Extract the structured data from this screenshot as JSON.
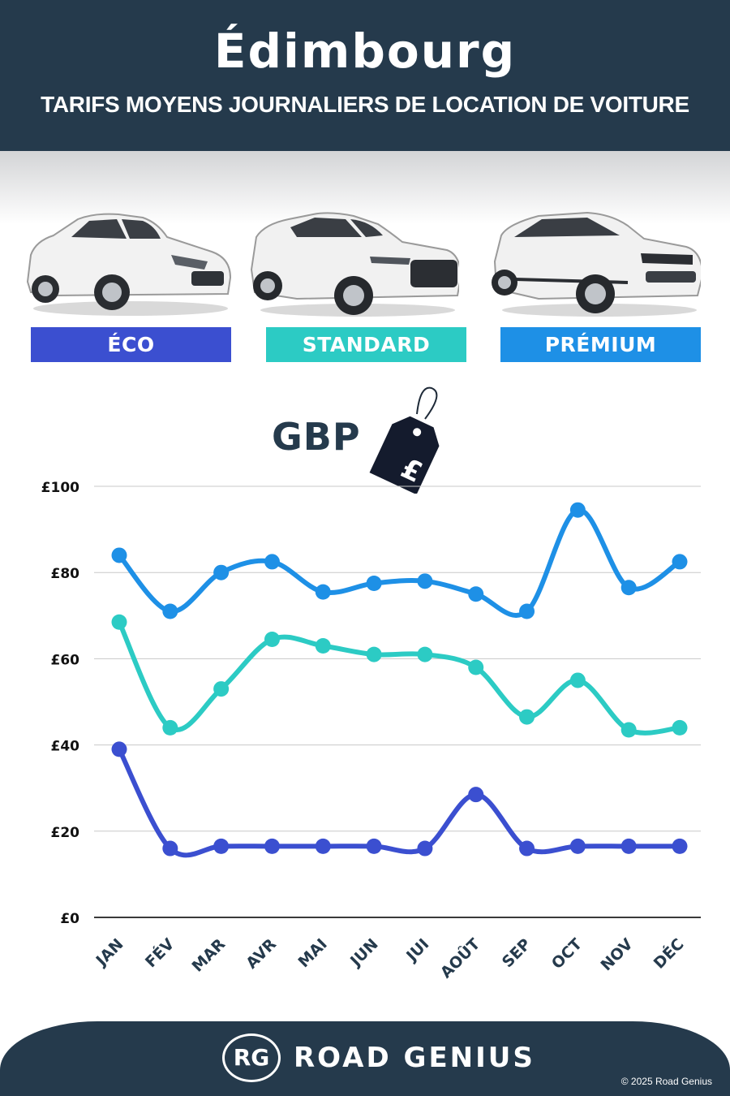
{
  "header": {
    "title": "Édimbourg",
    "subtitle": "TARIFS MOYENS JOURNALIERS DE LOCATION DE VOITURE"
  },
  "categories": [
    {
      "label": "ÉCO",
      "color": "#3b4fd0",
      "icon": "hatchback-car-icon"
    },
    {
      "label": "STANDARD",
      "color": "#2ccbc4",
      "icon": "suv-car-icon"
    },
    {
      "label": "PRÉMIUM",
      "color": "#1e90e6",
      "icon": "premium-suv-car-icon"
    }
  ],
  "currency": {
    "label": "GBP",
    "icon": "price-tag-icon",
    "symbol": "£"
  },
  "chart_data": {
    "type": "line",
    "categories": [
      "JAN",
      "FÉV",
      "MAR",
      "AVR",
      "MAI",
      "JUN",
      "JUI",
      "AOÛT",
      "SEP",
      "OCT",
      "NOV",
      "DÉC"
    ],
    "series": [
      {
        "name": "PRÉMIUM",
        "color": "#1e90e6",
        "values": [
          84,
          71,
          80,
          82.5,
          75.5,
          77.5,
          78,
          75,
          71,
          94.5,
          76.5,
          82.5
        ]
      },
      {
        "name": "STANDARD",
        "color": "#2ccbc4",
        "values": [
          68.5,
          44,
          53,
          64.5,
          63,
          61,
          61,
          58,
          46.5,
          55,
          43.5,
          44
        ]
      },
      {
        "name": "ÉCO",
        "color": "#3b4fd0",
        "values": [
          39,
          16,
          16.5,
          16.5,
          16.5,
          16.5,
          16,
          28.5,
          16,
          16.5,
          16.5,
          16.5
        ]
      }
    ],
    "ylim": [
      0,
      100
    ],
    "yticks": [
      0,
      20,
      40,
      60,
      80,
      100
    ],
    "ytick_labels": [
      "£0",
      "£20",
      "£40",
      "£60",
      "£80",
      "£100"
    ],
    "grid": true,
    "xlabel": "",
    "ylabel": ""
  },
  "footer": {
    "logo_text": "RG",
    "brand": "ROAD GENIUS",
    "copyright": "© 2025 Road Genius"
  }
}
